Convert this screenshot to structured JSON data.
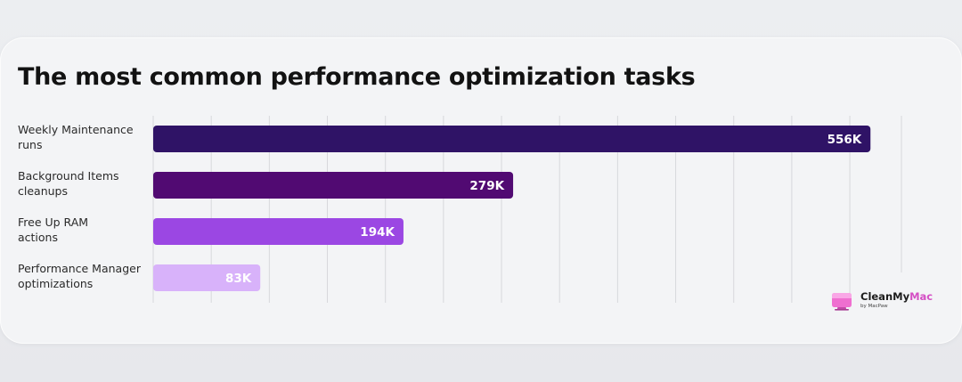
{
  "chart_data": {
    "type": "bar",
    "orientation": "horizontal",
    "title": "The most common performance optimization tasks",
    "categories": [
      [
        "Weekly Maintenance",
        "runs"
      ],
      [
        "Background Items",
        "cleanups"
      ],
      [
        "Free Up RAM",
        "actions"
      ],
      [
        "Performance Manager",
        "optimizations"
      ]
    ],
    "values": [
      556000,
      279000,
      194000,
      83000
    ],
    "value_labels": [
      "556K",
      "279K",
      "194K",
      "83K"
    ],
    "colors": [
      "#2f1366",
      "#510a72",
      "#9b47e3",
      "#d8b2fa"
    ],
    "xlim": [
      0,
      580000
    ],
    "grid": true,
    "xlabel": "",
    "ylabel": ""
  },
  "logo": {
    "name_part1": "CleanMy",
    "name_part2": "Mac",
    "byline": "by MacPaw",
    "icon": "cleanmymac-logo-icon",
    "accent_color": "#d44fc4"
  }
}
